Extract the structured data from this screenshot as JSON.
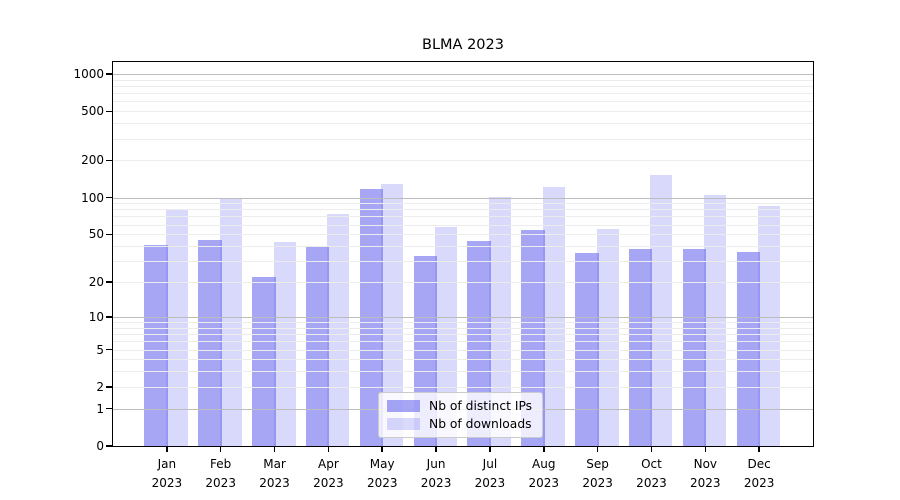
{
  "title": "BLMA 2023",
  "chart_data": {
    "type": "bar",
    "title": "BLMA 2023",
    "xlabel": "",
    "ylabel": "",
    "yscale": "log10(v+1) quasi-log (symlog-like), 0 at baseline",
    "ylim": [
      0,
      1250
    ],
    "grid": true,
    "legend_position": "lower center",
    "categories": [
      "Jan 2023",
      "Feb 2023",
      "Mar 2023",
      "Apr 2023",
      "May 2023",
      "Jun 2023",
      "Jul 2023",
      "Aug 2023",
      "Sep 2023",
      "Oct 2023",
      "Nov 2023",
      "Dec 2023"
    ],
    "series": [
      {
        "name": "Nb of distinct IPs",
        "color": "rgba(102,102,238,0.58)",
        "values": [
          41,
          45,
          22,
          39,
          118,
          33,
          44,
          54,
          35,
          38,
          38,
          36
        ]
      },
      {
        "name": "Nb of downloads",
        "color": "rgba(102,102,238,0.25)",
        "values": [
          80,
          97,
          43,
          74,
          128,
          57,
          101,
          122,
          55,
          152,
          105,
          85
        ]
      }
    ],
    "y_ticks": [
      {
        "value": 0,
        "label": "0"
      },
      {
        "value": 1,
        "label": "1"
      },
      {
        "value": 2,
        "label": "2"
      },
      {
        "value": 5,
        "label": "5"
      },
      {
        "value": 10,
        "label": "10"
      },
      {
        "value": 20,
        "label": "20"
      },
      {
        "value": 50,
        "label": "50"
      },
      {
        "value": 100,
        "label": "100"
      },
      {
        "value": 200,
        "label": "200"
      },
      {
        "value": 500,
        "label": "500"
      },
      {
        "value": 1000,
        "label": "1000"
      }
    ],
    "major_gridlines": [
      1,
      10,
      100,
      1000
    ],
    "minor_gridlines": [
      2,
      3,
      4,
      5,
      6,
      7,
      8,
      9,
      20,
      30,
      40,
      50,
      60,
      70,
      80,
      90,
      200,
      300,
      400,
      500,
      600,
      700,
      800,
      900
    ]
  },
  "colors": {
    "background": "#ffffff",
    "bar_base": "#6666ee",
    "major_grid": "#bcbcbc",
    "minor_grid": "#ececec",
    "axis": "#000000",
    "legend_border": "#cbcbcb"
  }
}
